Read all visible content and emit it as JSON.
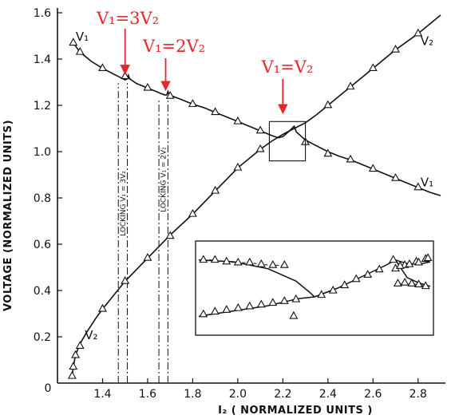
{
  "chart_data": {
    "type": "line",
    "xlabel": "I₂ ( NORMALIZED UNITS )",
    "ylabel": "VOLTAGE (NORMALIZED UNITS)",
    "xlim": [
      1.2,
      2.9
    ],
    "ylim": [
      0,
      1.6
    ],
    "xticks": [
      1.4,
      1.6,
      1.8,
      2.0,
      2.2,
      2.4,
      2.6,
      2.8
    ],
    "xtick_labels": [
      "1.4",
      "1.6",
      "1.8",
      "2.0",
      "2.2",
      "2.4",
      "2.6",
      "2.8"
    ],
    "yticks": [
      0.2,
      0.4,
      0.6,
      0.8,
      1.0,
      1.2,
      1.4,
      1.6
    ],
    "ytick_labels": [
      "0.2",
      "0.4",
      "0.6",
      "0.8",
      "1.0",
      "1.2",
      "1.4",
      "1.6"
    ],
    "origin_label": "0",
    "grid": false,
    "series": [
      {
        "name": "V₁",
        "curve": [
          [
            1.27,
            1.47
          ],
          [
            1.3,
            1.43
          ],
          [
            1.35,
            1.39
          ],
          [
            1.4,
            1.36
          ],
          [
            1.45,
            1.335
          ],
          [
            1.49,
            1.315
          ],
          [
            1.5,
            1.31
          ],
          [
            1.51,
            1.315
          ],
          [
            1.515,
            1.33
          ],
          [
            1.52,
            1.315
          ],
          [
            1.55,
            1.295
          ],
          [
            1.6,
            1.275
          ],
          [
            1.65,
            1.255
          ],
          [
            1.675,
            1.245
          ],
          [
            1.685,
            1.245
          ],
          [
            1.69,
            1.26
          ],
          [
            1.695,
            1.245
          ],
          [
            1.75,
            1.225
          ],
          [
            1.8,
            1.205
          ],
          [
            1.85,
            1.19
          ],
          [
            1.9,
            1.17
          ],
          [
            1.95,
            1.15
          ],
          [
            2.0,
            1.13
          ],
          [
            2.05,
            1.11
          ],
          [
            2.1,
            1.09
          ],
          [
            2.15,
            1.07
          ],
          [
            2.18,
            1.06
          ],
          [
            2.2,
            1.065
          ],
          [
            2.23,
            1.09
          ],
          [
            2.25,
            1.11
          ],
          [
            2.26,
            1.085
          ],
          [
            2.3,
            1.05
          ],
          [
            2.35,
            1.025
          ],
          [
            2.4,
            1.0
          ],
          [
            2.45,
            0.98
          ],
          [
            2.5,
            0.965
          ],
          [
            2.55,
            0.945
          ],
          [
            2.6,
            0.925
          ],
          [
            2.65,
            0.905
          ],
          [
            2.7,
            0.885
          ],
          [
            2.75,
            0.865
          ],
          [
            2.8,
            0.845
          ],
          [
            2.85,
            0.825
          ],
          [
            2.9,
            0.81
          ]
        ],
        "markers": [
          [
            1.27,
            1.47
          ],
          [
            1.3,
            1.43
          ],
          [
            1.4,
            1.36
          ],
          [
            1.5,
            1.325
          ],
          [
            1.6,
            1.275
          ],
          [
            1.7,
            1.24
          ],
          [
            1.8,
            1.205
          ],
          [
            1.9,
            1.17
          ],
          [
            2.0,
            1.13
          ],
          [
            2.1,
            1.09
          ],
          [
            2.3,
            1.04
          ],
          [
            2.4,
            0.99
          ],
          [
            2.5,
            0.965
          ],
          [
            2.6,
            0.925
          ],
          [
            2.7,
            0.885
          ],
          [
            2.8,
            0.845
          ]
        ]
      },
      {
        "name": "V₂",
        "curve": [
          [
            1.265,
            0.03
          ],
          [
            1.27,
            0.07
          ],
          [
            1.28,
            0.12
          ],
          [
            1.3,
            0.17
          ],
          [
            1.33,
            0.22
          ],
          [
            1.37,
            0.28
          ],
          [
            1.4,
            0.32
          ],
          [
            1.45,
            0.38
          ],
          [
            1.5,
            0.44
          ],
          [
            1.55,
            0.49
          ],
          [
            1.6,
            0.54
          ],
          [
            1.65,
            0.59
          ],
          [
            1.7,
            0.64
          ],
          [
            1.75,
            0.685
          ],
          [
            1.8,
            0.73
          ],
          [
            1.85,
            0.78
          ],
          [
            1.9,
            0.83
          ],
          [
            1.95,
            0.88
          ],
          [
            2.0,
            0.93
          ],
          [
            2.05,
            0.97
          ],
          [
            2.1,
            1.01
          ],
          [
            2.15,
            1.045
          ],
          [
            2.2,
            1.075
          ],
          [
            2.25,
            1.1
          ],
          [
            2.3,
            1.125
          ],
          [
            2.35,
            1.16
          ],
          [
            2.4,
            1.2
          ],
          [
            2.45,
            1.24
          ],
          [
            2.5,
            1.28
          ],
          [
            2.55,
            1.32
          ],
          [
            2.6,
            1.36
          ],
          [
            2.65,
            1.4
          ],
          [
            2.7,
            1.44
          ],
          [
            2.75,
            1.475
          ],
          [
            2.8,
            1.51
          ],
          [
            2.85,
            1.55
          ],
          [
            2.9,
            1.59
          ]
        ],
        "markers": [
          [
            1.265,
            0.03
          ],
          [
            1.27,
            0.07
          ],
          [
            1.28,
            0.12
          ],
          [
            1.3,
            0.16
          ],
          [
            1.4,
            0.32
          ],
          [
            1.5,
            0.44
          ],
          [
            1.6,
            0.54
          ],
          [
            1.7,
            0.635
          ],
          [
            1.8,
            0.73
          ],
          [
            1.9,
            0.83
          ],
          [
            2.0,
            0.93
          ],
          [
            2.1,
            1.01
          ],
          [
            2.4,
            1.2
          ],
          [
            2.5,
            1.28
          ],
          [
            2.6,
            1.36
          ],
          [
            2.7,
            1.44
          ],
          [
            2.8,
            1.51
          ]
        ]
      }
    ],
    "curve_labels": [
      {
        "text": "V₁",
        "at": [
          1.31,
          1.48
        ]
      },
      {
        "text": "V₂",
        "at": [
          2.84,
          1.46
        ]
      },
      {
        "text": "V₁",
        "at": [
          2.84,
          0.85
        ]
      },
      {
        "text": "V₂",
        "at": [
          1.35,
          0.19
        ]
      }
    ],
    "locking_lines": [
      {
        "x": [
          1.47,
          1.51
        ],
        "y": [
          0,
          1.31
        ],
        "label": "LOCKING  V₁ = 3V₂"
      },
      {
        "x": [
          1.65,
          1.69
        ],
        "y": [
          0,
          1.24
        ],
        "label": "LOCKING  V₁ = 2V₂"
      }
    ],
    "annotations": [
      {
        "text": "V₁=3V₂",
        "arrow_to": [
          1.5,
          1.32
        ]
      },
      {
        "text": "V₁=2V₂",
        "arrow_to": [
          1.68,
          1.25
        ]
      },
      {
        "text": "V₁=V₂",
        "arrow_to": [
          2.2,
          1.15
        ]
      }
    ],
    "zoom_box": {
      "x": [
        2.14,
        2.3
      ],
      "y": [
        0.96,
        1.13
      ]
    },
    "inset": {
      "description_none": "",
      "upper_left_curve": [
        [
          0,
          0.82
        ],
        [
          0.15,
          0.8
        ],
        [
          0.3,
          0.72
        ],
        [
          0.42,
          0.58
        ],
        [
          0.48,
          0.45
        ],
        [
          0.5,
          0.4
        ]
      ],
      "lower_left_curve": [
        [
          0,
          0.18
        ],
        [
          0.15,
          0.24
        ],
        [
          0.3,
          0.3
        ],
        [
          0.43,
          0.38
        ],
        [
          0.5,
          0.4
        ]
      ],
      "rising_line": [
        [
          0.5,
          0.4
        ],
        [
          0.6,
          0.5
        ],
        [
          0.72,
          0.65
        ],
        [
          0.8,
          0.75
        ],
        [
          0.85,
          0.82
        ]
      ],
      "right_upper_curve": [
        [
          0.85,
          0.82
        ],
        [
          0.9,
          0.78
        ],
        [
          0.95,
          0.77
        ],
        [
          1,
          0.8
        ]
      ],
      "right_lower_curve": [
        [
          0.85,
          0.82
        ],
        [
          0.9,
          0.62
        ],
        [
          0.95,
          0.56
        ],
        [
          1,
          0.52
        ]
      ],
      "markers_a": [
        [
          0.02,
          0.82
        ],
        [
          0.07,
          0.82
        ],
        [
          0.12,
          0.8
        ],
        [
          0.17,
          0.79
        ],
        [
          0.22,
          0.79
        ],
        [
          0.27,
          0.77
        ],
        [
          0.32,
          0.76
        ],
        [
          0.37,
          0.76
        ]
      ],
      "markers_b": [
        [
          0.02,
          0.2
        ],
        [
          0.07,
          0.23
        ],
        [
          0.12,
          0.25
        ],
        [
          0.17,
          0.27
        ],
        [
          0.22,
          0.29
        ],
        [
          0.27,
          0.31
        ],
        [
          0.32,
          0.33
        ],
        [
          0.37,
          0.35
        ],
        [
          0.42,
          0.37
        ]
      ],
      "markers_c": [
        [
          0.41,
          0.18
        ],
        [
          0.53,
          0.42
        ],
        [
          0.58,
          0.47
        ],
        [
          0.63,
          0.53
        ],
        [
          0.68,
          0.6
        ],
        [
          0.73,
          0.65
        ],
        [
          0.78,
          0.71
        ],
        [
          0.84,
          0.82
        ],
        [
          0.89,
          0.76
        ],
        [
          0.94,
          0.8
        ],
        [
          0.98,
          0.83
        ]
      ],
      "markers_d": [
        [
          0.85,
          0.72
        ],
        [
          0.87,
          0.75
        ],
        [
          0.91,
          0.77
        ],
        [
          0.95,
          0.79
        ],
        [
          0.99,
          0.84
        ]
      ],
      "markers_e": [
        [
          0.86,
          0.55
        ],
        [
          0.89,
          0.56
        ],
        [
          0.92,
          0.55
        ],
        [
          0.95,
          0.54
        ],
        [
          0.98,
          0.52
        ]
      ]
    }
  }
}
